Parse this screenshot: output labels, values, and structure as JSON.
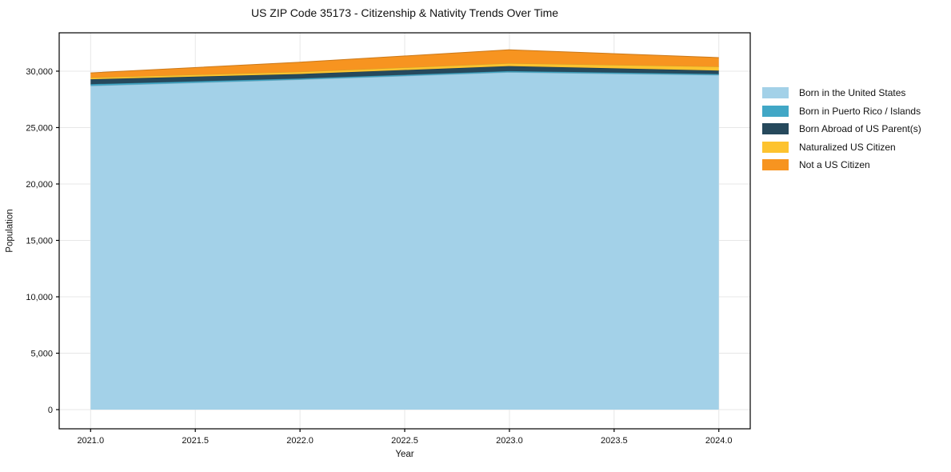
{
  "chart_data": {
    "type": "area",
    "stacked": true,
    "title": "US ZIP Code 35173 - Citizenship & Nativity Trends Over Time",
    "xlabel": "Year",
    "ylabel": "Population",
    "x": [
      2021,
      2022,
      2023,
      2024
    ],
    "series": [
      {
        "name": "Born in the United States",
        "color": "#a3d1e8",
        "values": [
          28700,
          29250,
          29900,
          29650
        ]
      },
      {
        "name": "Born in Puerto Rico / Islands",
        "color": "#41a7c6",
        "values": [
          150,
          100,
          100,
          100
        ]
      },
      {
        "name": "Born Abroad of US Parent(s)",
        "color": "#26495c",
        "values": [
          430,
          400,
          450,
          300
        ]
      },
      {
        "name": "Naturalized US Citizen",
        "color": "#fdc32f",
        "values": [
          150,
          200,
          250,
          350
        ]
      },
      {
        "name": "Not a US Citizen",
        "color": "#f79420",
        "values": [
          420,
          850,
          1200,
          800
        ]
      }
    ],
    "totals": [
      29850,
      30800,
      31900,
      31200
    ],
    "xlim": [
      2020.85,
      2024.15
    ],
    "ylim": [
      -1700,
      33400
    ],
    "x_ticks": [
      2021.0,
      2021.5,
      2022.0,
      2022.5,
      2023.0,
      2023.5,
      2024.0
    ],
    "x_tick_labels": [
      "2021.0",
      "2021.5",
      "2022.0",
      "2022.5",
      "2023.0",
      "2023.5",
      "2024.0"
    ],
    "y_ticks": [
      0,
      5000,
      10000,
      15000,
      20000,
      25000,
      30000
    ],
    "y_tick_labels": [
      "0",
      "5,000",
      "10,000",
      "15,000",
      "20,000",
      "25,000",
      "30,000"
    ],
    "grid": true,
    "legend_position": "right of plot, no frame",
    "colors": {
      "grid": "#e7e7e7",
      "spine": "#000000",
      "text": "#111111"
    }
  }
}
